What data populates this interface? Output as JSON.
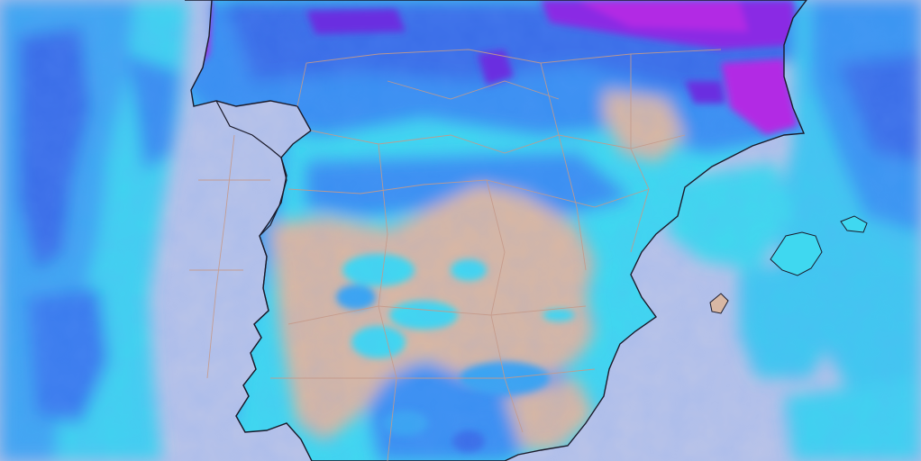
{
  "map": {
    "type": "precipitation-forecast",
    "region": "iberian-peninsula",
    "colors": {
      "sea_dry": "#b9c3e8",
      "land_dry": "#d8b7a4",
      "light_rain": "#3fe0ee",
      "moderate_rain": "#3aa0f2",
      "heavy_rain": "#3a5ee8",
      "very_heavy_rain": "#6a2fe0",
      "extreme_rain": "#b22ae4",
      "coastline": "#1a1a2a",
      "borders": "#c59a8a"
    },
    "labels": []
  }
}
